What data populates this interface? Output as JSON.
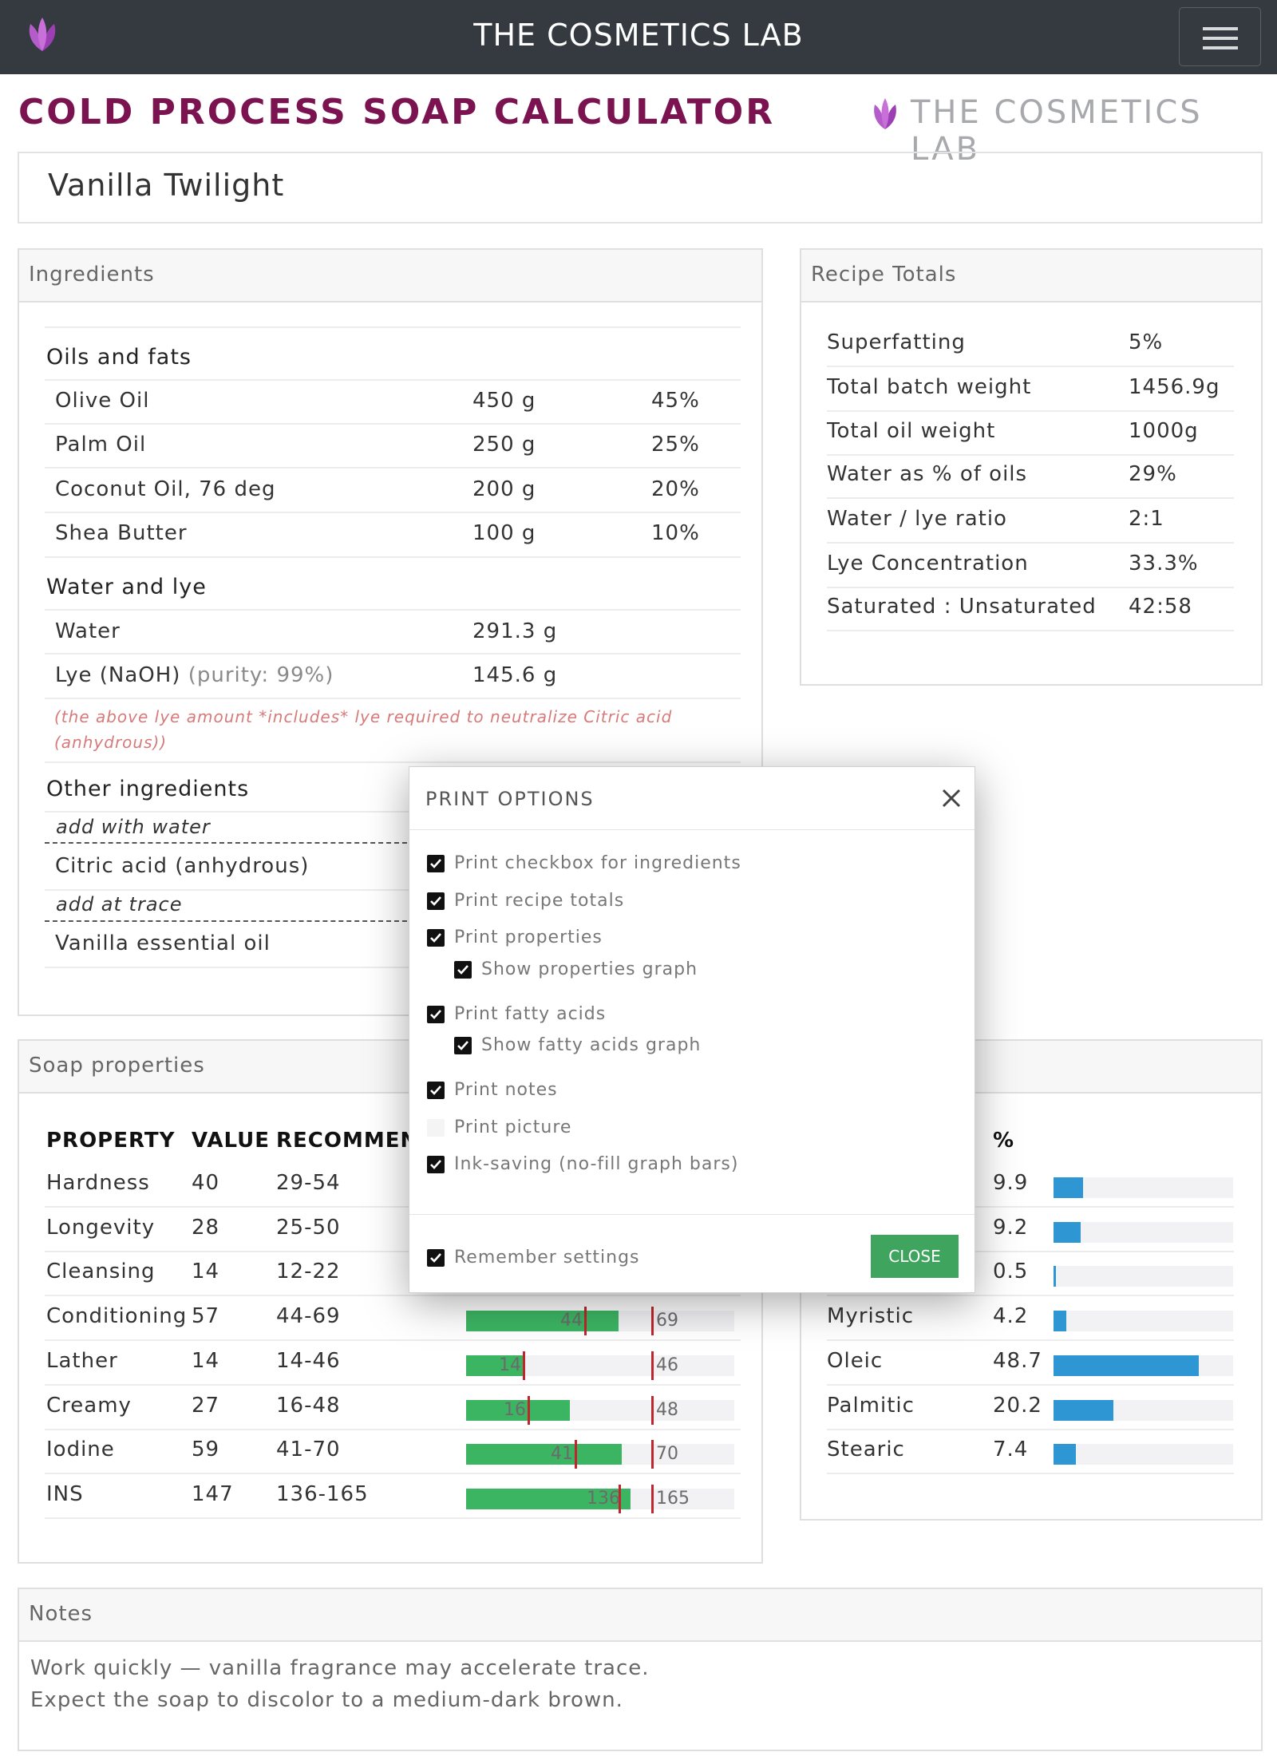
{
  "navbar": {
    "title": "THE COSMETICS LAB"
  },
  "header": {
    "title": "COLD PROCESS SOAP CALCULATOR",
    "brand": "THE COSMETICS LAB"
  },
  "recipe": {
    "name": "Vanilla Twilight"
  },
  "ingredients": {
    "card_title": "Ingredients",
    "oils_title": "Oils and fats",
    "oils": [
      {
        "name": "Olive Oil",
        "weight": "450 g",
        "pct": "45%"
      },
      {
        "name": "Palm Oil",
        "weight": "250 g",
        "pct": "25%"
      },
      {
        "name": "Coconut Oil, 76 deg",
        "weight": "200 g",
        "pct": "20%"
      },
      {
        "name": "Shea Butter",
        "weight": "100 g",
        "pct": "10%"
      }
    ],
    "water_title": "Water and lye",
    "water": {
      "name": "Water",
      "weight": "291.3 g"
    },
    "lye": {
      "name": "Lye (NaOH)",
      "purity": "(purity: 99%)",
      "weight": "145.6 g"
    },
    "lye_note_line1": "(the above lye amount *includes* lye required to neutralize Citric acid",
    "lye_note_line2": "(anhydrous))",
    "other_title": "Other ingredients",
    "other_sub1": "add with water",
    "other_item1": "Citric acid (anhydrous)",
    "other_sub2": "add at trace",
    "other_item2": "Vanilla essential oil"
  },
  "totals": {
    "card_title": "Recipe Totals",
    "rows": [
      {
        "label": "Superfatting",
        "value": "5%"
      },
      {
        "label": "Total batch weight",
        "value": "1456.9g"
      },
      {
        "label": "Total oil weight",
        "value": "1000g"
      },
      {
        "label": "Water as % of oils",
        "value": "29%"
      },
      {
        "label": "Water / lye ratio",
        "value": "2:1"
      },
      {
        "label": "Lye Concentration",
        "value": "33.3%"
      },
      {
        "label": "Saturated : Unsaturated",
        "value": "42:58"
      }
    ]
  },
  "properties": {
    "card_title": "Soap properties",
    "col_property": "PROPERTY",
    "col_value": "VALUE",
    "col_recommended": "RECOMMEN",
    "rows": [
      {
        "name": "Hardness",
        "value": "40",
        "range": "29-54"
      },
      {
        "name": "Longevity",
        "value": "28",
        "range": "25-50"
      },
      {
        "name": "Cleansing",
        "value": "14",
        "range": "12-22"
      },
      {
        "name": "Conditioning",
        "value": "57",
        "range": "44-69",
        "min": "44",
        "max": "69",
        "fill": 0.57
      },
      {
        "name": "Lather",
        "value": "14",
        "range": "14-46",
        "min": "14",
        "max": "46",
        "fill": 0.14
      },
      {
        "name": "Creamy",
        "value": "27",
        "range": "16-48",
        "min": "16",
        "max": "48",
        "fill": 0.27
      },
      {
        "name": "Iodine",
        "value": "59",
        "range": "41-70",
        "min": "41",
        "max": "70",
        "fill": 0.59
      },
      {
        "name": "INS",
        "value": "147",
        "range": "136-165",
        "min": "136",
        "max": "165",
        "fill": 0.59
      }
    ]
  },
  "fatty_acids": {
    "col_pct": "%",
    "rows": [
      {
        "name": "",
        "value": "9.9",
        "fill": 0.099
      },
      {
        "name": "",
        "value": "9.2",
        "fill": 0.092
      },
      {
        "name": "",
        "value": "0.5",
        "fill": 0.005
      },
      {
        "name": "Myristic",
        "value": "4.2",
        "fill": 0.042
      },
      {
        "name": "Oleic",
        "value": "48.7",
        "fill": 0.487
      },
      {
        "name": "Palmitic",
        "value": "20.2",
        "fill": 0.202
      },
      {
        "name": "Stearic",
        "value": "7.4",
        "fill": 0.074
      }
    ]
  },
  "notes": {
    "card_title": "Notes",
    "line1": "Work quickly — vanilla fragrance may accelerate trace.",
    "line2": "Expect the soap to discolor to a medium-dark brown."
  },
  "modal": {
    "title": "PRINT OPTIONS",
    "options": [
      {
        "label": "Print checkbox for ingredients",
        "checked": true
      },
      {
        "label": "Print recipe totals",
        "checked": true
      },
      {
        "label": "Print properties",
        "checked": true
      },
      {
        "label": "Show properties graph",
        "checked": true
      },
      {
        "label": "Print fatty acids",
        "checked": true
      },
      {
        "label": "Show fatty acids graph",
        "checked": true
      },
      {
        "label": "Print notes",
        "checked": true
      },
      {
        "label": "Print picture",
        "checked": false
      },
      {
        "label": "Ink-saving (no-fill graph bars)",
        "checked": true
      }
    ],
    "remember": {
      "label": "Remember settings",
      "checked": true
    },
    "close_button": "CLOSE"
  },
  "colors": {
    "navbar": "#343a40",
    "title": "#7b1350",
    "prop_bar": "#3cb563",
    "fa_bar": "#2e97d3",
    "marker": "#c0242c",
    "close_btn": "#3fa45e"
  },
  "icons": {
    "logo": "lotus-icon",
    "menu": "hamburger-menu-icon",
    "close": "close-icon",
    "check": "checkmark-icon"
  }
}
